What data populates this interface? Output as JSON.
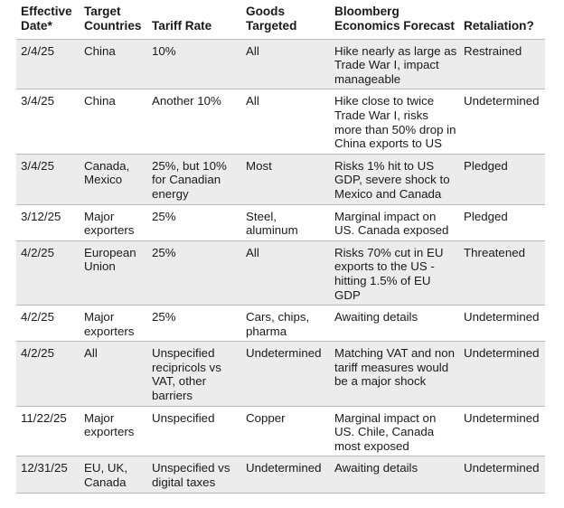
{
  "columns": [
    {
      "line1": "Effective",
      "line2": "Date*"
    },
    {
      "line1": "Target",
      "line2": "Countries"
    },
    {
      "line1": "",
      "line2": "Tariff Rate"
    },
    {
      "line1": "Goods",
      "line2": "Targeted"
    },
    {
      "line1": "Bloomberg",
      "line2": "Economics Forecast"
    },
    {
      "line1": "",
      "line2": "Retaliation?"
    }
  ],
  "rows": [
    {
      "date": "2/4/25",
      "countries": "China",
      "rate": "10%",
      "goods": "All",
      "forecast": "Hike nearly as large as Trade War I, impact manageable",
      "retaliation": "Restrained"
    },
    {
      "date": "3/4/25",
      "countries": "China",
      "rate": "Another 10%",
      "goods": "All",
      "forecast": "Hike close to twice Trade War I, risks more than 50% drop in China exports to US",
      "retaliation": "Undetermined"
    },
    {
      "date": "3/4/25",
      "countries": "Canada, Mexico",
      "rate": "25%, but 10% for Canadian energy",
      "goods": "Most",
      "forecast": "Risks 1% hit to US GDP, severe shock to Mexico and Canada",
      "retaliation": "Pledged"
    },
    {
      "date": "3/12/25",
      "countries": "Major exporters",
      "rate": "25%",
      "goods": "Steel, aluminum",
      "forecast": "Marginal impact on US. Canada exposed",
      "retaliation": "Pledged"
    },
    {
      "date": "4/2/25",
      "countries": "European Union",
      "rate": "25%",
      "goods": "All",
      "forecast": "Risks 70% cut in EU exports to the US - hitting 1.5% of EU GDP",
      "retaliation": "Threatened"
    },
    {
      "date": "4/2/25",
      "countries": "Major exporters",
      "rate": "25%",
      "goods": "Cars, chips, pharma",
      "forecast": "Awaiting details",
      "retaliation": "Undetermined"
    },
    {
      "date": "4/2/25",
      "countries": "All",
      "rate": "Unspecified recipricols vs VAT, other barriers",
      "goods": "Undetermined",
      "forecast": "Matching VAT and non tariff measures would be a major shock",
      "retaliation": "Undetermined"
    },
    {
      "date": "11/22/25",
      "countries": "Major exporters",
      "rate": "Unspecified",
      "goods": "Copper",
      "forecast": "Marginal impact on US. Chile, Canada most exposed",
      "retaliation": "Undetermined"
    },
    {
      "date": "12/31/25",
      "countries": "EU, UK, Canada",
      "rate": "Unspecified vs digital taxes",
      "goods": "Undetermined",
      "forecast": "Awaiting details",
      "retaliation": "Undetermined"
    }
  ]
}
